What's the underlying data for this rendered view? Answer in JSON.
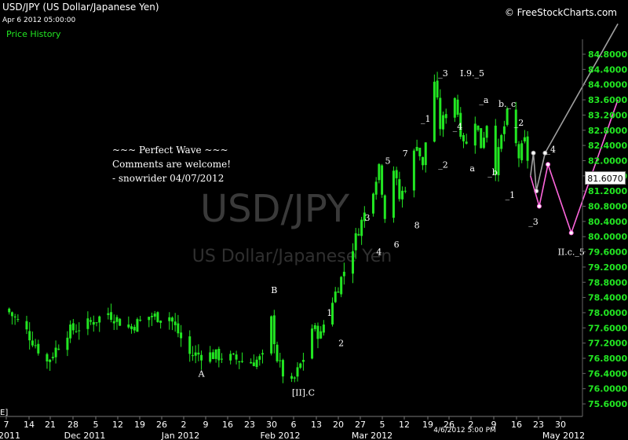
{
  "header": {
    "title": "USD/JPY (US Dollar/Japanese Yen)",
    "datestamp": "Apr 6 2012 05:00:00",
    "series_label": "Price History",
    "copyright": "© FreeStockCharts.com"
  },
  "watermark": {
    "symbol": "USD/JPY",
    "name": "US Dollar/Japanese Yen"
  },
  "comment_lines": [
    "~~~ Perfect Wave ~~~",
    "Comments are welcome!",
    "- snowrider  04/07/2012"
  ],
  "last_price": "81.6070",
  "corner_tag": "E]",
  "cursor_label": "4/6/2012 5:00 PM",
  "colors": {
    "candle": "#22e622",
    "price_axis_text": "#22e622",
    "projection_gray": "#a0a0a0",
    "projection_pink": "#ff66dd",
    "background": "#000000"
  },
  "chart_data": {
    "type": "candlestick",
    "title": "USD/JPY (US Dollar/Japanese Yen)",
    "ylim": [
      75.4,
      85.2
    ],
    "y_ticks": [
      "84.8000",
      "84.4000",
      "84.0000",
      "83.6000",
      "83.2000",
      "82.8000",
      "82.4000",
      "82.0000",
      "81.6000",
      "81.2000",
      "80.8000",
      "80.4000",
      "80.0000",
      "79.6000",
      "79.2000",
      "78.8000",
      "78.4000",
      "78.0000",
      "77.6000",
      "77.2000",
      "76.8000",
      "76.4000",
      "76.0000",
      "75.6000"
    ],
    "x_day_ticks": [
      "7",
      "14",
      "21",
      "28",
      "5",
      "12",
      "19",
      "26",
      "2",
      "9",
      "16",
      "23",
      "30",
      "6",
      "13",
      "20",
      "27",
      "5",
      "12",
      "19",
      "26",
      "2",
      "9",
      "16",
      "23",
      "30"
    ],
    "x_month_labels": [
      "2011",
      "Dec 2011",
      "Jan 2012",
      "Feb 2012",
      "Mar 2012",
      "May 2012"
    ],
    "anchors": [
      {
        "d": 0,
        "p": 78.1
      },
      {
        "d": 7,
        "p": 77.5
      },
      {
        "d": 14,
        "p": 76.7
      },
      {
        "d": 21,
        "p": 77.5
      },
      {
        "d": 28,
        "p": 77.7
      },
      {
        "d": 35,
        "p": 78.0
      },
      {
        "d": 42,
        "p": 77.6
      },
      {
        "d": 49,
        "p": 77.9
      },
      {
        "d": 56,
        "p": 77.9
      },
      {
        "d": 63,
        "p": 76.9
      },
      {
        "d": 70,
        "p": 76.9
      },
      {
        "d": 77,
        "p": 76.8
      },
      {
        "d": 84,
        "p": 76.7
      },
      {
        "d": 88,
        "p": 76.8
      },
      {
        "d": 91,
        "p": 77.8
      },
      {
        "d": 93,
        "p": 76.8
      },
      {
        "d": 95,
        "p": 76.4
      },
      {
        "d": 98,
        "p": 76.1
      },
      {
        "d": 102,
        "p": 76.8
      },
      {
        "d": 105,
        "p": 77.6
      },
      {
        "d": 108,
        "p": 77.4
      },
      {
        "d": 110,
        "p": 78.0
      },
      {
        "d": 114,
        "p": 78.7
      },
      {
        "d": 118,
        "p": 79.5
      },
      {
        "d": 121,
        "p": 80.2
      },
      {
        "d": 125,
        "p": 81.0
      },
      {
        "d": 128,
        "p": 81.9
      },
      {
        "d": 130,
        "p": 80.6
      },
      {
        "d": 133,
        "p": 81.8
      },
      {
        "d": 135,
        "p": 81.0
      },
      {
        "d": 138,
        "p": 81.5
      },
      {
        "d": 141,
        "p": 82.5
      },
      {
        "d": 143,
        "p": 81.8
      },
      {
        "d": 145,
        "p": 83.2
      },
      {
        "d": 147,
        "p": 84.1
      },
      {
        "d": 149,
        "p": 82.9
      },
      {
        "d": 152,
        "p": 83.4
      },
      {
        "d": 154,
        "p": 83.7
      },
      {
        "d": 156,
        "p": 82.8
      },
      {
        "d": 158,
        "p": 82.4
      },
      {
        "d": 161,
        "p": 83.1
      },
      {
        "d": 163,
        "p": 82.4
      },
      {
        "d": 165,
        "p": 83.0
      },
      {
        "d": 168,
        "p": 81.8
      },
      {
        "d": 170,
        "p": 82.6
      },
      {
        "d": 172,
        "p": 83.2
      },
      {
        "d": 174,
        "p": 82.7
      },
      {
        "d": 176,
        "p": 82.1
      },
      {
        "d": 178,
        "p": 82.5
      },
      {
        "d": 180,
        "p": 81.6
      }
    ],
    "projection_gray": [
      {
        "d": 180,
        "p": 81.6
      },
      {
        "d": 181,
        "p": 82.2
      },
      {
        "d": 182,
        "p": 81.2
      },
      {
        "d": 185,
        "p": 82.2
      },
      {
        "d": 210,
        "p": 85.6
      }
    ],
    "projection_pink": [
      {
        "d": 180,
        "p": 81.6
      },
      {
        "d": 183,
        "p": 80.8
      },
      {
        "d": 186,
        "p": 81.9
      },
      {
        "d": 194,
        "p": 80.1
      },
      {
        "d": 210,
        "p": 83.6
      }
    ],
    "annotations": [
      {
        "text": "A",
        "d": 67,
        "p": 76.4
      },
      {
        "text": "B",
        "d": 92,
        "p": 78.6
      },
      {
        "text": "[II].C",
        "d": 102,
        "p": 75.9
      },
      {
        "text": "1",
        "d": 111,
        "p": 78.0
      },
      {
        "text": "2",
        "d": 115,
        "p": 77.2
      },
      {
        "text": "3",
        "d": 124,
        "p": 80.5
      },
      {
        "text": "4",
        "d": 128,
        "p": 79.6
      },
      {
        "text": "5",
        "d": 131,
        "p": 82.0
      },
      {
        "text": "6",
        "d": 134,
        "p": 79.8
      },
      {
        "text": "7",
        "d": 137,
        "p": 82.2
      },
      {
        "text": "8",
        "d": 141,
        "p": 80.3
      },
      {
        "text": "_1",
        "d": 144,
        "p": 83.1
      },
      {
        "text": "_2",
        "d": 150,
        "p": 81.9
      },
      {
        "text": "_3",
        "d": 150,
        "p": 84.3
      },
      {
        "text": "_4",
        "d": 155,
        "p": 82.9
      },
      {
        "text": "I.9._5",
        "d": 160,
        "p": 84.3
      },
      {
        "text": "a",
        "d": 160,
        "p": 81.8
      },
      {
        "text": "_a",
        "d": 164,
        "p": 83.6
      },
      {
        "text": "_b",
        "d": 167,
        "p": 81.7
      },
      {
        "text": "b._c",
        "d": 172,
        "p": 83.5
      },
      {
        "text": "_2",
        "d": 176,
        "p": 83.0
      },
      {
        "text": "_1",
        "d": 173,
        "p": 81.1
      },
      {
        "text": "_3",
        "d": 181,
        "p": 80.4
      },
      {
        "text": "_4",
        "d": 187,
        "p": 82.3
      },
      {
        "text": "II.c._5",
        "d": 194,
        "p": 79.6
      }
    ]
  }
}
